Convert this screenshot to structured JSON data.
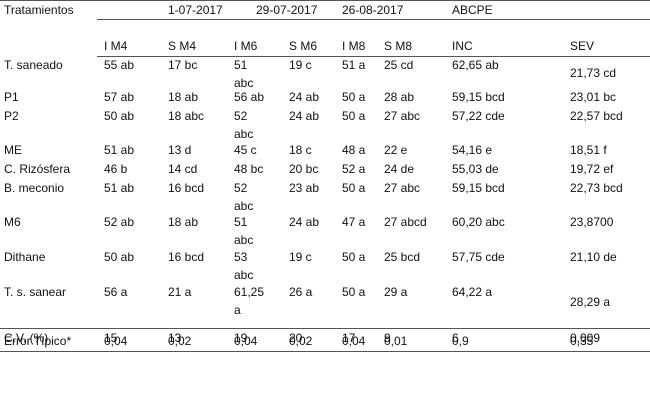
{
  "table": {
    "corner_label": "Tratamientos",
    "group_headers": [
      {
        "label": "1-07-2017"
      },
      {
        "label": "29-07-2017"
      },
      {
        "label": "26-08-2017"
      },
      {
        "label": "ABCPE"
      }
    ],
    "column_headers": [
      "I M4",
      "S M4",
      "I M6",
      "S M6",
      "I M8",
      "S M8",
      "INC",
      "SEV"
    ],
    "rows": [
      {
        "name": "T. saneado",
        "cells": [
          "55 ab",
          "17 bc",
          "51\nabc",
          "19 c",
          "51 a",
          "25 cd",
          "62,65 ab",
          "21,73 cd"
        ]
      },
      {
        "name": "P1",
        "cells": [
          "57 ab",
          "18 ab",
          "56 ab",
          "24 ab",
          "50 a",
          "28 ab",
          "59,15 bcd",
          "23,01 bc"
        ]
      },
      {
        "name": "P2",
        "cells": [
          "50 ab",
          "18 abc",
          "52\nabc",
          "24 ab",
          "50 a",
          "27 abc",
          "57,22 cde",
          "22,57 bcd"
        ]
      },
      {
        "name": "ME",
        "cells": [
          "51 ab",
          "13 d",
          "45 c",
          "18 c",
          "48 a",
          "22 e",
          "54,16 e",
          "18,51 f"
        ]
      },
      {
        "name": "C. Rizósfera",
        "cells": [
          "46 b",
          "14 cd",
          "48 bc",
          "20 bc",
          "52 a",
          "24 de",
          "55,03 de",
          "19,72 ef"
        ]
      },
      {
        "name": "B. meconio",
        "cells": [
          "51 ab",
          "16 bcd",
          "52\nabc",
          "23 ab",
          "50 a",
          "27 abc",
          "59,15 bcd",
          "22,73 bcd"
        ]
      },
      {
        "name": "M6",
        "cells": [
          "52 ab",
          "18 ab",
          "51\nabc",
          "24 ab",
          "47 a",
          "27 abcd",
          "60,20 abc",
          "23,8700"
        ]
      },
      {
        "name": "Dithane",
        "cells": [
          "50 ab",
          "16 bcd",
          "53\nabc",
          "19 c",
          "50 a",
          "25 bcd",
          "57,75 cde",
          "21,10 de"
        ]
      },
      {
        "name": "T. s. sanear",
        "cells": [
          "56 a",
          "21 a",
          "61,25\na",
          "26 a",
          "50 a",
          "29 a",
          "64,22 a",
          "28,29 a"
        ]
      }
    ],
    "footer_rows": [
      {
        "name": "C.V. (%)",
        "cells": [
          "15",
          "13",
          "19",
          "20",
          "17",
          "9",
          "6",
          "0,009"
        ]
      },
      {
        "name": "Error Típico*",
        "cells": [
          "0,04",
          "0,02",
          "0,04",
          "0,02",
          "0,04",
          "0,01",
          "0,9",
          "0,35"
        ]
      }
    ]
  }
}
